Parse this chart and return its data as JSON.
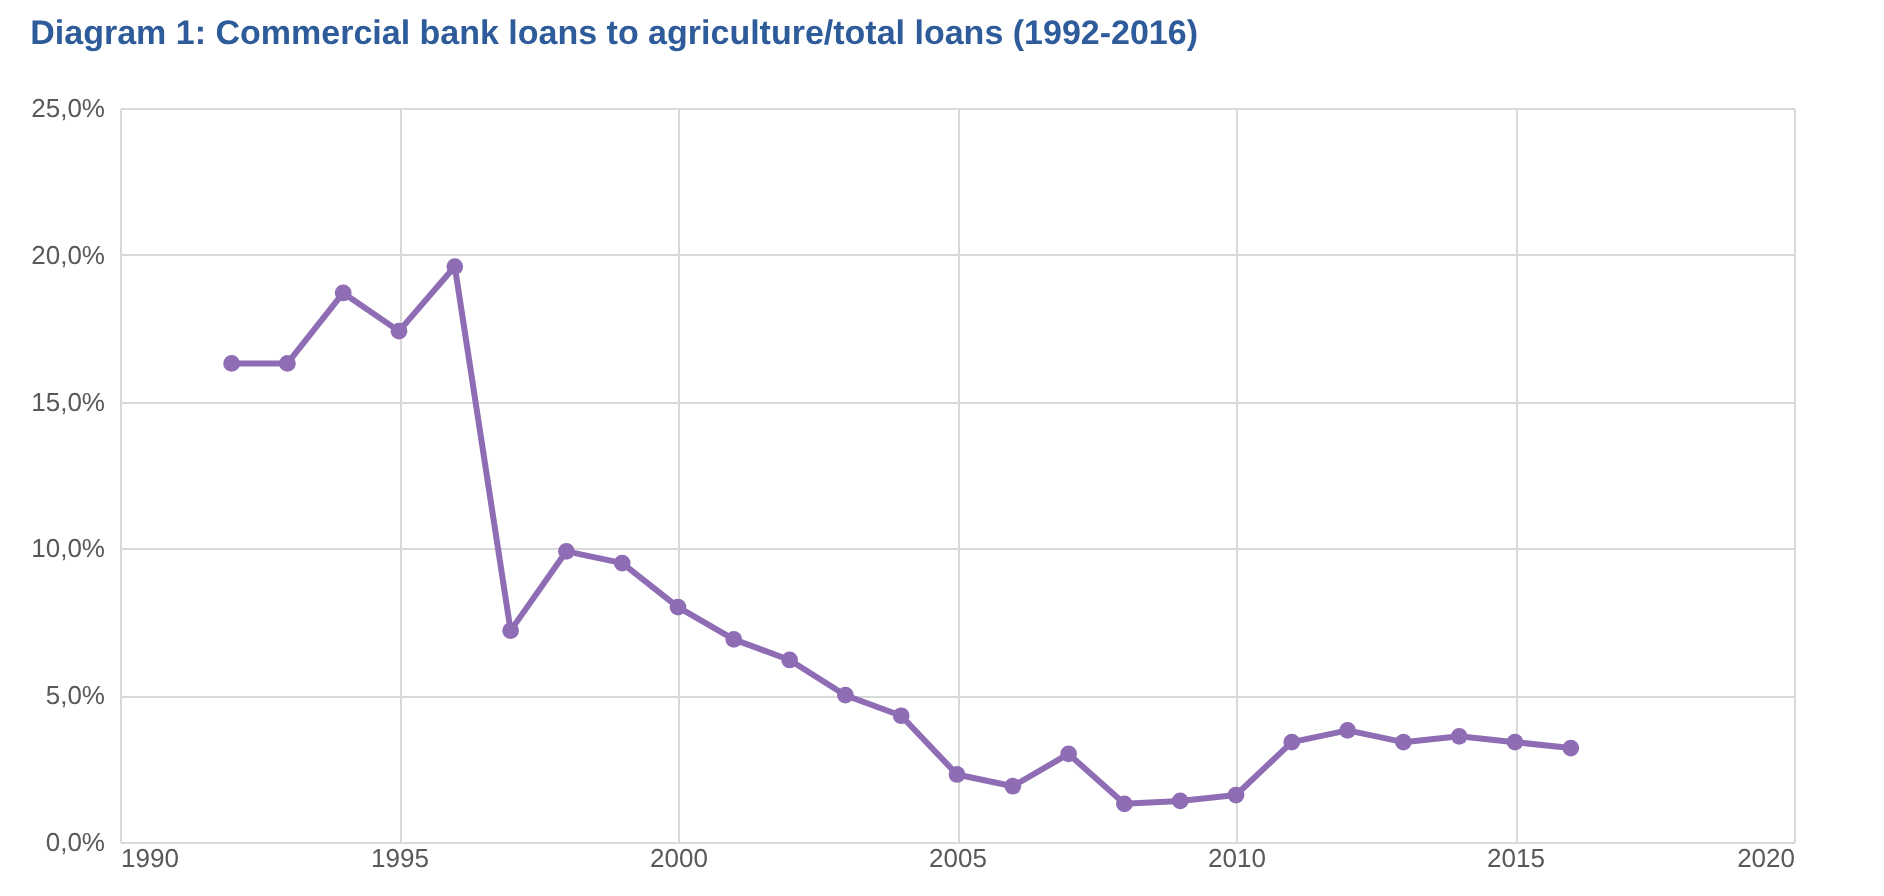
{
  "chart_data": {
    "type": "line",
    "title": "Diagram 1: Commercial bank loans to agriculture/total loans (1992-2016)",
    "x": [
      1992,
      1993,
      1994,
      1995,
      1996,
      1997,
      1998,
      1999,
      2000,
      2001,
      2002,
      2003,
      2004,
      2005,
      2006,
      2007,
      2008,
      2009,
      2010,
      2011,
      2012,
      2013,
      2014,
      2015,
      2016
    ],
    "series": [
      {
        "color": "#8e6db4",
        "values": [
          16.3,
          16.3,
          18.7,
          17.4,
          19.6,
          7.2,
          9.9,
          9.5,
          8.0,
          6.9,
          6.2,
          5.0,
          4.3,
          2.3,
          1.9,
          3.0,
          1.3,
          1.4,
          1.6,
          3.4,
          3.8,
          3.4,
          3.6,
          3.4,
          3.2
        ]
      }
    ],
    "xlim": [
      1990,
      2020
    ],
    "xticks": [
      1990,
      1995,
      2000,
      2005,
      2010,
      2015,
      2020
    ],
    "ylim": [
      0,
      25
    ],
    "yticks": [
      {
        "value": 0,
        "label": "0,0%"
      },
      {
        "value": 5,
        "label": "5,0%"
      },
      {
        "value": 10,
        "label": "10,0%"
      },
      {
        "value": 15,
        "label": "15,0%"
      },
      {
        "value": 20,
        "label": "20,0%"
      },
      {
        "value": 25,
        "label": "25,0%"
      }
    ],
    "grid": true,
    "marker": "circle",
    "line_style": "solid"
  }
}
